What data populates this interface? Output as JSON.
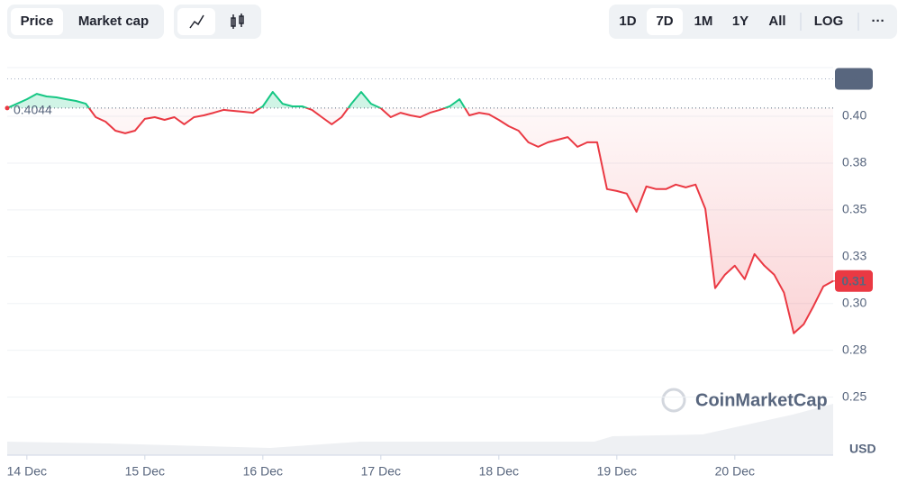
{
  "toolbar": {
    "views": [
      "Price",
      "Market cap"
    ],
    "ranges": [
      "1D",
      "7D",
      "1M",
      "1Y",
      "All",
      "LOG",
      "···"
    ]
  },
  "chart_data": {
    "type": "line",
    "watermark": "CoinMarketCap",
    "y_unit": "USD",
    "x": [
      -2,
      -1,
      0,
      1,
      2,
      3,
      4,
      5,
      6,
      7,
      8,
      9,
      10,
      11,
      12,
      13,
      14,
      15,
      16,
      17,
      18,
      19,
      20,
      21,
      22,
      23,
      24,
      25,
      26,
      27,
      28,
      29,
      30,
      31,
      32,
      33,
      34,
      35,
      36,
      37,
      38,
      39,
      40,
      41,
      42,
      43,
      44,
      45,
      46,
      47,
      48,
      49,
      50,
      51,
      52,
      53,
      54,
      55,
      56,
      57,
      58,
      59,
      60,
      61,
      62,
      63,
      64,
      65,
      66,
      67,
      68,
      69,
      70,
      71,
      72,
      73,
      74,
      75,
      76,
      77,
      78,
      79,
      80,
      81,
      82
    ],
    "series": [
      {
        "name": "Price",
        "color_up": "#16c784",
        "color_down": "#ea3943",
        "values": [
          0.4044,
          0.4067,
          0.4091,
          0.412,
          0.4106,
          0.4101,
          0.4091,
          0.4082,
          0.4067,
          0.3995,
          0.3971,
          0.3923,
          0.3909,
          0.3923,
          0.3986,
          0.3995,
          0.3981,
          0.3995,
          0.3957,
          0.3995,
          0.4005,
          0.4019,
          0.4034,
          0.4029,
          0.4024,
          0.4019,
          0.4053,
          0.413,
          0.4067,
          0.4053,
          0.4053,
          0.4034,
          0.3995,
          0.3957,
          0.3995,
          0.4067,
          0.413,
          0.4067,
          0.4043,
          0.3995,
          0.4019,
          0.4005,
          0.3995,
          0.4019,
          0.4034,
          0.4053,
          0.4091,
          0.4005,
          0.4019,
          0.401,
          0.3981,
          0.3947,
          0.3923,
          0.3861,
          0.3837,
          0.3861,
          0.3875,
          0.3889,
          0.3837,
          0.3861,
          0.3861,
          0.3611,
          0.3601,
          0.3587,
          0.349,
          0.3625,
          0.3611,
          0.3611,
          0.3635,
          0.362,
          0.3635,
          0.3505,
          0.3082,
          0.3154,
          0.3202,
          0.313,
          0.3264,
          0.3202,
          0.3154,
          0.3058,
          0.2841,
          0.2889,
          0.2986,
          0.3091,
          0.312
        ]
      }
    ],
    "xlim": [
      -2,
      82
    ],
    "xticks": [
      {
        "value": 0,
        "label": "14 Dec"
      },
      {
        "value": 12,
        "label": "15 Dec"
      },
      {
        "value": 24,
        "label": "16 Dec"
      },
      {
        "value": 36,
        "label": "17 Dec"
      },
      {
        "value": 48,
        "label": "18 Dec"
      },
      {
        "value": 60,
        "label": "19 Dec"
      },
      {
        "value": 72,
        "label": "20 Dec"
      }
    ],
    "ylim": [
      0.219,
      0.426
    ],
    "yticks": [
      0.25,
      {
        "value": 0.275,
        "label": "0.28"
      },
      {
        "value": 0.3,
        "label": "0.30"
      },
      {
        "value": 0.325,
        "label": "0.33"
      },
      0.35,
      {
        "value": 0.375,
        "label": "0.38"
      },
      {
        "value": 0.4,
        "label": "0.40"
      }
    ],
    "reference": 0.4044,
    "high": 0.42,
    "last": {
      "value": 0.312,
      "label": "0.31"
    },
    "grid": true
  }
}
